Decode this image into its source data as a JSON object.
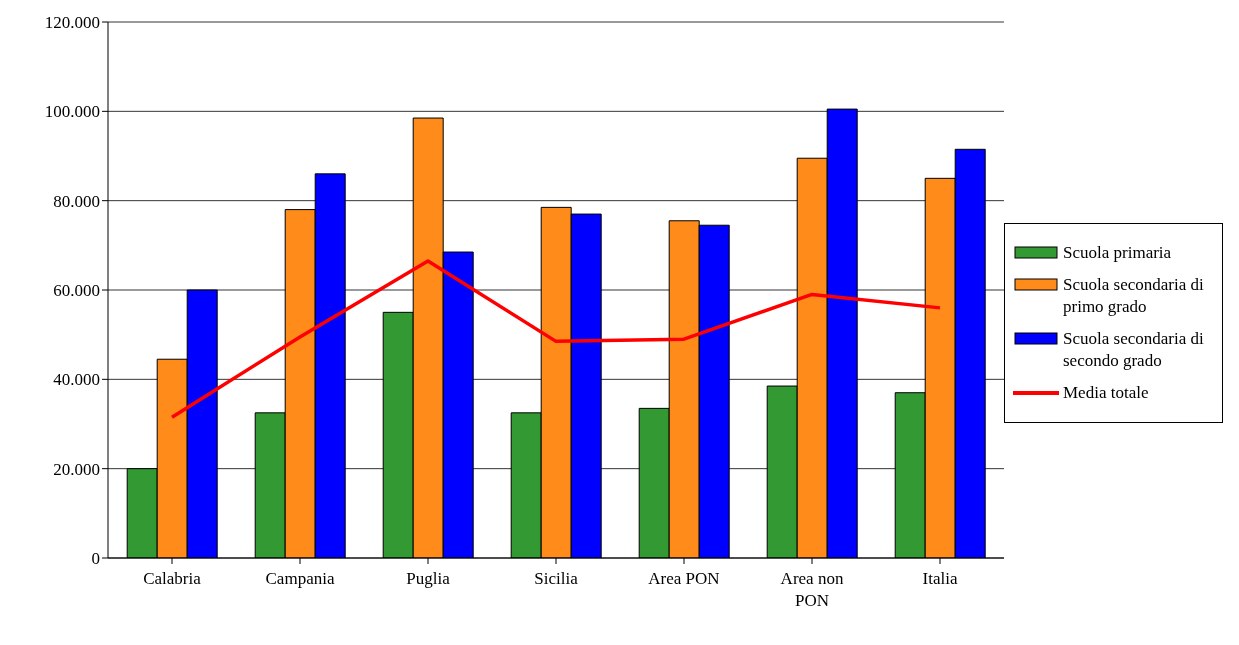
{
  "chart_data": {
    "type": "bar",
    "categories": [
      "Calabria",
      "Campania",
      "Puglia",
      "Sicilia",
      "Area PON",
      "Area non PON",
      "Italia"
    ],
    "series": [
      {
        "name": "Scuola primaria",
        "color": "#339933",
        "values": [
          20000,
          32500,
          55000,
          32500,
          33500,
          38500,
          37000
        ]
      },
      {
        "name": "Scuola secondaria di primo grado",
        "color": "#ff8c1a",
        "values": [
          44500,
          78000,
          98500,
          78500,
          75500,
          89500,
          85000
        ]
      },
      {
        "name": "Scuola secondaria di secondo grado",
        "color": "#0000ff",
        "values": [
          60000,
          86000,
          68500,
          77000,
          74500,
          100500,
          91500
        ]
      },
      {
        "name": "Media totale",
        "type": "line",
        "color": "#ff0000",
        "values": [
          31500,
          49500,
          66500,
          48500,
          49000,
          59000,
          56000
        ]
      }
    ],
    "ylim": [
      0,
      120000
    ],
    "yticks": [
      {
        "value": 0,
        "label": "0"
      },
      {
        "value": 20000,
        "label": "20.000"
      },
      {
        "value": 40000,
        "label": "40.000"
      },
      {
        "value": 60000,
        "label": "60.000"
      },
      {
        "value": 80000,
        "label": "80.000"
      },
      {
        "value": 100000,
        "label": "100.000"
      },
      {
        "value": 120000,
        "label": "120.000"
      }
    ],
    "grid": "y",
    "legend": "right",
    "marker": "none",
    "line_style": "solid"
  }
}
